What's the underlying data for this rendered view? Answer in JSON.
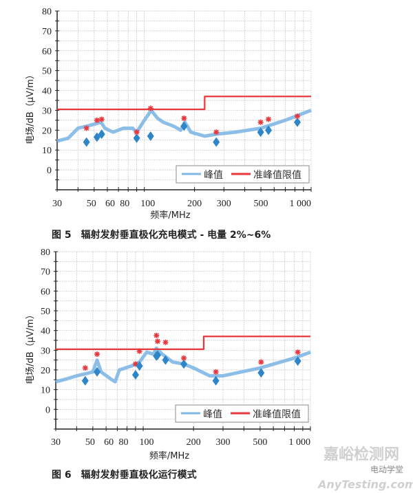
{
  "chart_data": [
    {
      "type": "line",
      "caption": "图 5　辐射发射垂直极化充电模式 - 电量 2%~6%",
      "xlabel": "频率/MHz",
      "ylabel": "电场/dB（μV/m）",
      "xscale": "log",
      "xlim": [
        30,
        1000
      ],
      "ylim": [
        -10,
        80
      ],
      "x_ticks": [
        30,
        50,
        60,
        80,
        100,
        200,
        300,
        500,
        1000
      ],
      "x_tick_labels": [
        "30",
        "50",
        "60",
        "80",
        "100",
        "200",
        "300",
        "500",
        "1 000"
      ],
      "y_ticks": [
        0,
        10,
        20,
        30,
        40,
        50,
        60,
        70,
        80
      ],
      "y_tick_labels": [
        "0",
        "10",
        "20",
        "30",
        "40",
        "50",
        "60",
        "70",
        "80"
      ],
      "grid": true,
      "legend": {
        "placement": "bottom-right",
        "entries": [
          "峰值",
          "准峰值限值"
        ]
      },
      "series": [
        {
          "name": "峰值",
          "color": "#7fb7e6",
          "x": [
            30,
            35,
            40,
            45,
            50,
            55,
            58,
            65,
            75,
            85,
            90,
            100,
            110,
            120,
            130,
            150,
            165,
            175,
            190,
            230,
            270,
            350,
            500,
            700,
            1000
          ],
          "y": [
            14.5,
            16,
            21,
            22,
            23,
            24,
            21,
            19,
            21,
            21,
            19,
            25,
            30,
            26,
            24,
            22,
            20,
            24,
            19,
            17,
            18,
            19,
            21,
            25,
            30
          ]
        },
        {
          "name": "准峰值限值",
          "color": "#e8373d",
          "x": [
            30,
            230,
            230,
            1000
          ],
          "y": [
            30.5,
            30.5,
            37,
            37
          ]
        }
      ],
      "markers": {
        "star_color": "#e8373d",
        "diamond_color": "#2e86c9",
        "x": [
          45,
          52,
          55.5,
          90,
          109,
          173,
          270,
          498,
          555,
          827
        ],
        "star": [
          21,
          25,
          25.5,
          19,
          31,
          26,
          19,
          24,
          25.5,
          27
        ],
        "diamond": [
          14,
          16.5,
          18,
          16,
          17,
          22,
          14,
          19,
          20,
          24
        ]
      }
    },
    {
      "type": "line",
      "caption": "图 6　辐射发射垂直极化运行模式",
      "xlabel": "频率/MHz",
      "ylabel": "电场/dB（μV/m）",
      "xscale": "log",
      "xlim": [
        30,
        1000
      ],
      "ylim": [
        -10,
        80
      ],
      "x_ticks": [
        30,
        50,
        60,
        80,
        100,
        200,
        300,
        500,
        1000
      ],
      "x_tick_labels": [
        "30",
        "50",
        "60",
        "80",
        "100",
        "200",
        "300",
        "500",
        "1 000"
      ],
      "y_ticks": [
        0,
        10,
        20,
        30,
        40,
        50,
        60,
        70,
        80
      ],
      "y_tick_labels": [
        "0",
        "10",
        "20",
        "30",
        "40",
        "50",
        "60",
        "70",
        "80"
      ],
      "grid": true,
      "legend": {
        "placement": "bottom-right",
        "entries": [
          "峰值",
          "准峰值限值"
        ]
      },
      "series": [
        {
          "name": "峰值",
          "color": "#7fb7e6",
          "x": [
            30,
            35,
            40,
            45,
            50,
            53,
            56,
            65,
            68,
            72,
            85,
            95,
            105,
            115,
            120,
            130,
            150,
            175,
            200,
            250,
            300,
            500,
            800,
            1000
          ],
          "y": [
            14,
            15.5,
            17,
            18,
            19,
            25,
            19,
            15,
            14,
            20,
            22,
            24,
            29,
            28,
            31,
            28,
            24,
            23,
            21,
            17,
            17,
            21,
            26,
            29
          ]
        },
        {
          "name": "准峰值限值",
          "color": "#e8373d",
          "x": [
            30,
            230,
            230,
            1000
          ],
          "y": [
            30.5,
            30.5,
            37,
            37
          ]
        }
      ],
      "markers": {
        "star_color": "#e8373d",
        "diamond_color": "#2e86c9",
        "x": [
          45,
          53,
          90,
          95,
          120,
          122,
          136,
          175,
          272,
          507,
          840
        ],
        "star": [
          21,
          28,
          23,
          29.5,
          37.5,
          34.5,
          34,
          26,
          19,
          24,
          29
        ],
        "diamond": [
          14.5,
          19,
          17.5,
          22,
          27,
          27.5,
          25,
          23,
          14.5,
          18.5,
          24.5
        ]
      }
    }
  ],
  "watermark": {
    "site": "嘉峪检测网",
    "url": "AnyTesting.com",
    "account": "电动学堂"
  }
}
